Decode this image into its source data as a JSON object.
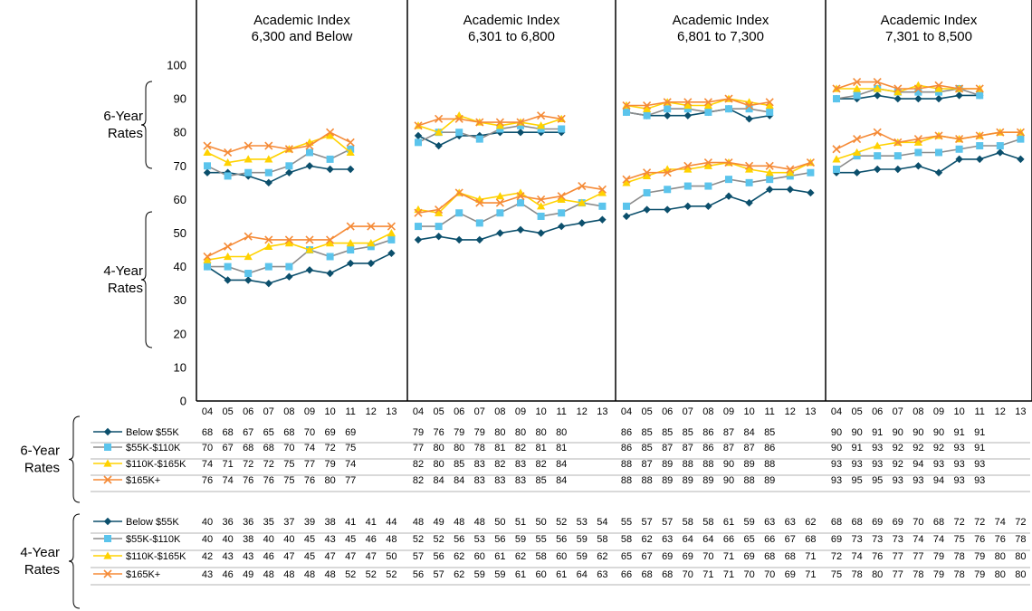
{
  "series_styles": [
    {
      "name": "Below $55K",
      "color": "#0b4f6c",
      "marker": "diamond"
    },
    {
      "name": "$55K-$110K",
      "color": "#5bc4ec",
      "marker": "square"
    },
    {
      "name": "$110K-$165K",
      "color": "#ffd200",
      "marker": "triangle"
    },
    {
      "name": "$165K+",
      "color": "#f58a36",
      "marker": "x"
    }
  ],
  "line_colors": {
    "Below $55K": "#0b4f6c",
    "$55K-$110K": "#8c8c8c",
    "$110K-$165K": "#ffd200",
    "$165K+": "#f58a36"
  },
  "rate_labels": {
    "six_year": "6-Year\nRates",
    "four_year": "4-Year\nRates"
  },
  "table_groups": [
    "six_year",
    "four_year"
  ],
  "chart_data": {
    "type": "line",
    "ylim": [
      0,
      100
    ],
    "yticks": [
      0,
      10,
      20,
      30,
      40,
      50,
      60,
      70,
      80,
      90,
      100
    ],
    "categories": [
      "04",
      "05",
      "06",
      "07",
      "08",
      "09",
      "10",
      "11",
      "12",
      "13"
    ],
    "grid": false,
    "legend": "table-below",
    "panels": [
      {
        "title": "Academic Index\n6,300 and Below",
        "six_year": [
          {
            "name": "Below $55K",
            "values": [
              68,
              68,
              67,
              65,
              68,
              70,
              69,
              69
            ]
          },
          {
            "name": "$55K-$110K",
            "values": [
              70,
              67,
              68,
              68,
              70,
              74,
              72,
              75
            ]
          },
          {
            "name": "$110K-$165K",
            "values": [
              74,
              71,
              72,
              72,
              75,
              77,
              79,
              74
            ]
          },
          {
            "name": "$165K+",
            "values": [
              76,
              74,
              76,
              76,
              75,
              76,
              80,
              77
            ]
          }
        ],
        "four_year": [
          {
            "name": "Below $55K",
            "values": [
              40,
              36,
              36,
              35,
              37,
              39,
              38,
              41,
              41,
              44
            ]
          },
          {
            "name": "$55K-$110K",
            "values": [
              40,
              40,
              38,
              40,
              40,
              45,
              43,
              45,
              46,
              48
            ]
          },
          {
            "name": "$110K-$165K",
            "values": [
              42,
              43,
              43,
              46,
              47,
              45,
              47,
              47,
              47,
              50
            ]
          },
          {
            "name": "$165K+",
            "values": [
              43,
              46,
              49,
              48,
              48,
              48,
              48,
              52,
              52,
              52
            ]
          }
        ]
      },
      {
        "title": "Academic Index\n6,301 to 6,800",
        "six_year": [
          {
            "name": "Below $55K",
            "values": [
              79,
              76,
              79,
              79,
              80,
              80,
              80,
              80
            ]
          },
          {
            "name": "$55K-$110K",
            "values": [
              77,
              80,
              80,
              78,
              81,
              82,
              81,
              81
            ]
          },
          {
            "name": "$110K-$165K",
            "values": [
              82,
              80,
              85,
              83,
              82,
              83,
              82,
              84
            ]
          },
          {
            "name": "$165K+",
            "values": [
              82,
              84,
              84,
              83,
              83,
              83,
              85,
              84
            ]
          }
        ],
        "four_year": [
          {
            "name": "Below $55K",
            "values": [
              48,
              49,
              48,
              48,
              50,
              51,
              50,
              52,
              53,
              54
            ]
          },
          {
            "name": "$55K-$110K",
            "values": [
              52,
              52,
              56,
              53,
              56,
              59,
              55,
              56,
              59,
              58
            ]
          },
          {
            "name": "$110K-$165K",
            "values": [
              57,
              56,
              62,
              60,
              61,
              62,
              58,
              60,
              59,
              62
            ]
          },
          {
            "name": "$165K+",
            "values": [
              56,
              57,
              62,
              59,
              59,
              61,
              60,
              61,
              64,
              63
            ]
          }
        ]
      },
      {
        "title": "Academic Index\n6,801 to 7,300",
        "six_year": [
          {
            "name": "Below $55K",
            "values": [
              86,
              85,
              85,
              85,
              86,
              87,
              84,
              85
            ]
          },
          {
            "name": "$55K-$110K",
            "values": [
              86,
              85,
              87,
              87,
              86,
              87,
              87,
              86
            ]
          },
          {
            "name": "$110K-$165K",
            "values": [
              88,
              87,
              89,
              88,
              88,
              90,
              89,
              88
            ]
          },
          {
            "name": "$165K+",
            "values": [
              88,
              88,
              89,
              89,
              89,
              90,
              88,
              89
            ]
          }
        ],
        "four_year": [
          {
            "name": "Below $55K",
            "values": [
              55,
              57,
              57,
              58,
              58,
              61,
              59,
              63,
              63,
              62
            ]
          },
          {
            "name": "$55K-$110K",
            "values": [
              58,
              62,
              63,
              64,
              64,
              66,
              65,
              66,
              67,
              68
            ]
          },
          {
            "name": "$110K-$165K",
            "values": [
              65,
              67,
              69,
              69,
              70,
              71,
              69,
              68,
              68,
              71
            ]
          },
          {
            "name": "$165K+",
            "values": [
              66,
              68,
              68,
              70,
              71,
              71,
              70,
              70,
              69,
              71
            ]
          }
        ]
      },
      {
        "title": "Academic Index\n7,301 to 8,500",
        "six_year": [
          {
            "name": "Below $55K",
            "values": [
              90,
              90,
              91,
              90,
              90,
              90,
              91,
              91
            ]
          },
          {
            "name": "$55K-$110K",
            "values": [
              90,
              91,
              93,
              92,
              92,
              92,
              93,
              91
            ]
          },
          {
            "name": "$110K-$165K",
            "values": [
              93,
              93,
              93,
              92,
              94,
              93,
              93,
              93
            ]
          },
          {
            "name": "$165K+",
            "values": [
              93,
              95,
              95,
              93,
              93,
              94,
              93,
              93
            ]
          }
        ],
        "four_year": [
          {
            "name": "Below $55K",
            "values": [
              68,
              68,
              69,
              69,
              70,
              68,
              72,
              72,
              74,
              72
            ]
          },
          {
            "name": "$55K-$110K",
            "values": [
              69,
              73,
              73,
              73,
              74,
              74,
              75,
              76,
              76,
              78
            ]
          },
          {
            "name": "$110K-$165K",
            "values": [
              72,
              74,
              76,
              77,
              77,
              79,
              78,
              79,
              80,
              80
            ]
          },
          {
            "name": "$165K+",
            "values": [
              75,
              78,
              80,
              77,
              78,
              79,
              78,
              79,
              80,
              80
            ]
          }
        ]
      }
    ]
  }
}
